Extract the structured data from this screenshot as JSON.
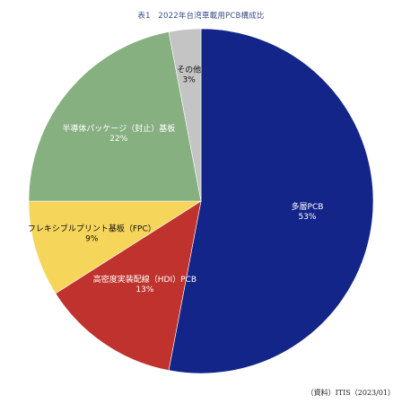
{
  "chart_data": {
    "type": "pie",
    "title": "表1　2022年台湾車載用PCB構成比",
    "slices": [
      {
        "label": "多層PCB",
        "value": 53,
        "value_label": "53%",
        "color": "#14258a",
        "text_color": "#ffffff"
      },
      {
        "label": "高密度実装配線（HDI）PCB",
        "value": 13,
        "value_label": "13%",
        "color": "#c0322d",
        "text_color": "#ffffff"
      },
      {
        "label": "フレキシブルプリント基板（FPC）",
        "value": 9,
        "value_label": "9%",
        "color": "#f5d55a",
        "text_color": "#111111"
      },
      {
        "label": "半導体パッケージ（封止）基板",
        "value": 22,
        "value_label": "22%",
        "color": "#86b080",
        "text_color": "#ffffff"
      },
      {
        "label": "その他",
        "value": 3,
        "value_label": "3%",
        "color": "#c4c4c4",
        "text_color": "#111111"
      }
    ],
    "start_angle": "12 o'clock",
    "direction": "clockwise",
    "legend": "none (labels inside slices)"
  },
  "source": "（資料）ITIS（2023/01）"
}
